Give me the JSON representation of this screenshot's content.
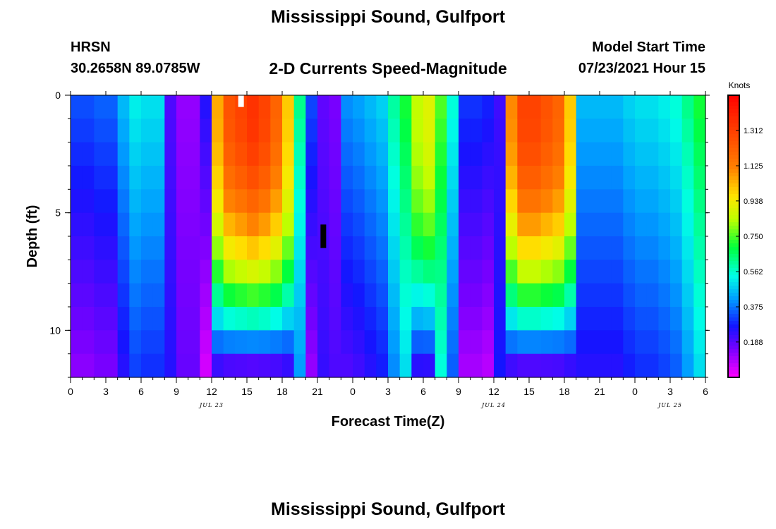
{
  "header": {
    "title": "Mississippi Sound, Gulfport",
    "station": "HRSN",
    "coords": "30.2658N  89.0785W",
    "subtitle": "2-D Currents Speed-Magnitude",
    "model_start_label": "Model Start Time",
    "model_start_value": "07/23/2021 Hour 15"
  },
  "footer": {
    "title": "Mississippi Sound, Gulfport"
  },
  "chart_data": {
    "type": "heatmap",
    "xlabel": "Forecast Time(Z)",
    "ylabel": "Depth (ft)",
    "x_range_hours": [
      0,
      54
    ],
    "y_range_ft": [
      0,
      12
    ],
    "x_ticks": [
      {
        "hour": 0,
        "label": "0"
      },
      {
        "hour": 3,
        "label": "3"
      },
      {
        "hour": 6,
        "label": "6"
      },
      {
        "hour": 9,
        "label": "9"
      },
      {
        "hour": 12,
        "label": "12"
      },
      {
        "hour": 15,
        "label": "15"
      },
      {
        "hour": 18,
        "label": "18"
      },
      {
        "hour": 21,
        "label": "21"
      },
      {
        "hour": 24,
        "label": "0"
      },
      {
        "hour": 27,
        "label": "3"
      },
      {
        "hour": 30,
        "label": "6"
      },
      {
        "hour": 33,
        "label": "9"
      },
      {
        "hour": 36,
        "label": "12"
      },
      {
        "hour": 39,
        "label": "15"
      },
      {
        "hour": 42,
        "label": "18"
      },
      {
        "hour": 45,
        "label": "21"
      },
      {
        "hour": 48,
        "label": "0"
      },
      {
        "hour": 51,
        "label": "3"
      },
      {
        "hour": 54,
        "label": "6"
      }
    ],
    "date_labels": [
      {
        "hour": 12,
        "label": "JUL 23"
      },
      {
        "hour": 36,
        "label": "JUL 24"
      },
      {
        "hour": 51,
        "label": "JUL 25"
      }
    ],
    "y_ticks": [
      {
        "depth": 0,
        "label": "0"
      },
      {
        "depth": 5,
        "label": "5"
      },
      {
        "depth": 10,
        "label": "10"
      }
    ],
    "colorbar": {
      "label": "Knots",
      "min": 0.0,
      "max": 1.5,
      "ticks": [
        "1.312",
        "1.125",
        "0.938",
        "0.750",
        "0.562",
        "0.375",
        "0.188"
      ],
      "tick_values": [
        1.312,
        1.125,
        0.938,
        0.75,
        0.562,
        0.375,
        0.188
      ]
    },
    "markers": [
      {
        "hour": 14.5,
        "depth_from": 0,
        "depth_to": 0.5,
        "color": "#ffffff"
      },
      {
        "hour": 21.5,
        "depth_from": 5.5,
        "depth_to": 6.5,
        "color": "#000000"
      }
    ],
    "speed_model": {
      "note_depth_levels": 12,
      "surface_speed_by_hour": [
        0.33,
        0.33,
        0.35,
        0.35,
        0.45,
        0.52,
        0.5,
        0.5,
        0.2,
        0.12,
        0.12,
        0.25,
        1.05,
        1.25,
        1.3,
        1.35,
        1.3,
        1.2,
        1.0,
        0.62,
        0.32,
        0.18,
        0.15,
        0.4,
        0.42,
        0.45,
        0.48,
        0.6,
        0.7,
        0.85,
        0.9,
        0.75,
        0.55,
        0.3,
        0.3,
        0.28,
        0.22,
        1.1,
        1.3,
        1.3,
        1.25,
        1.2,
        1.0,
        0.45,
        0.45,
        0.45,
        0.45,
        0.48,
        0.5,
        0.5,
        0.52,
        0.55,
        0.62,
        0.7
      ]
    }
  }
}
